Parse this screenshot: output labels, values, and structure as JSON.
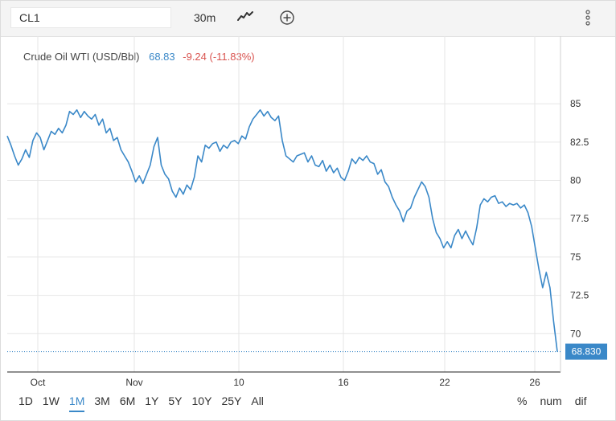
{
  "toolbar": {
    "symbol": "CL1",
    "interval": "30m",
    "chart_type_icon": "line-chart-icon",
    "add_icon": "plus-circle-icon",
    "more_icon": "vertical-dots-icon"
  },
  "legend": {
    "name": "Crude Oil WTI (USD/Bbl)",
    "price": "68.83",
    "change": "-9.24 (-11.83%)"
  },
  "range_buttons": [
    "1D",
    "1W",
    "1M",
    "3M",
    "6M",
    "1Y",
    "5Y",
    "10Y",
    "25Y",
    "All"
  ],
  "active_range": "1M",
  "scale_buttons": [
    "%",
    "num",
    "dif"
  ],
  "colors": {
    "line": "#3a88c8",
    "negative": "#d9534f",
    "grid": "#e6e6e6",
    "price_tag": "#3a88c8"
  },
  "chart_data": {
    "type": "line",
    "x_tick_labels": [
      "Oct",
      "Nov",
      "10",
      "16",
      "22",
      "26"
    ],
    "y_ticks": [
      70,
      72.5,
      75,
      77.5,
      80,
      82.5,
      85
    ],
    "y_tick_labels": [
      "70",
      "72.5",
      "75",
      "77.5",
      "80",
      "82.5",
      "85"
    ],
    "ylim": [
      67.5,
      87
    ],
    "last_value": 68.83,
    "last_value_label": "68.830",
    "grid": true,
    "series": [
      {
        "values": [
          82.9,
          82.3,
          81.6,
          81.0,
          81.4,
          82.0,
          81.5,
          82.6,
          83.1,
          82.8,
          82.0,
          82.6,
          83.2,
          83.0,
          83.4,
          83.1,
          83.6,
          84.5,
          84.3,
          84.6,
          84.1,
          84.5,
          84.2,
          84.0,
          84.3,
          83.6,
          84.0,
          83.1,
          83.4,
          82.6,
          82.8,
          82.0,
          81.6,
          81.2,
          80.6,
          79.9,
          80.3,
          79.8,
          80.4,
          81.0,
          82.2,
          82.8,
          81.0,
          80.4,
          80.1,
          79.3,
          78.9,
          79.5,
          79.1,
          79.7,
          79.4,
          80.2,
          81.6,
          81.2,
          82.3,
          82.1,
          82.4,
          82.5,
          81.9,
          82.3,
          82.1,
          82.5,
          82.6,
          82.4,
          82.9,
          82.7,
          83.5,
          84.0,
          84.3,
          84.6,
          84.2,
          84.5,
          84.1,
          83.9,
          84.2,
          82.6,
          81.6,
          81.4,
          81.2,
          81.6,
          81.7,
          81.8,
          81.2,
          81.6,
          81.0,
          80.9,
          81.3,
          80.6,
          81.0,
          80.5,
          80.8,
          80.2,
          80.0,
          80.6,
          81.4,
          81.1,
          81.5,
          81.3,
          81.6,
          81.2,
          81.1,
          80.4,
          80.7,
          79.9,
          79.6,
          78.9,
          78.4,
          78.0,
          77.3,
          78.0,
          78.2,
          78.9,
          79.4,
          79.9,
          79.6,
          78.9,
          77.5,
          76.6,
          76.2,
          75.6,
          76.0,
          75.6,
          76.4,
          76.8,
          76.2,
          76.7,
          76.2,
          75.8,
          76.9,
          78.4,
          78.8,
          78.6,
          78.9,
          79.0,
          78.5,
          78.6,
          78.3,
          78.5,
          78.4,
          78.5,
          78.2,
          78.4,
          77.9,
          77.0,
          75.6,
          74.2,
          73.0,
          74.0,
          73.0,
          70.8,
          68.83
        ]
      }
    ]
  }
}
